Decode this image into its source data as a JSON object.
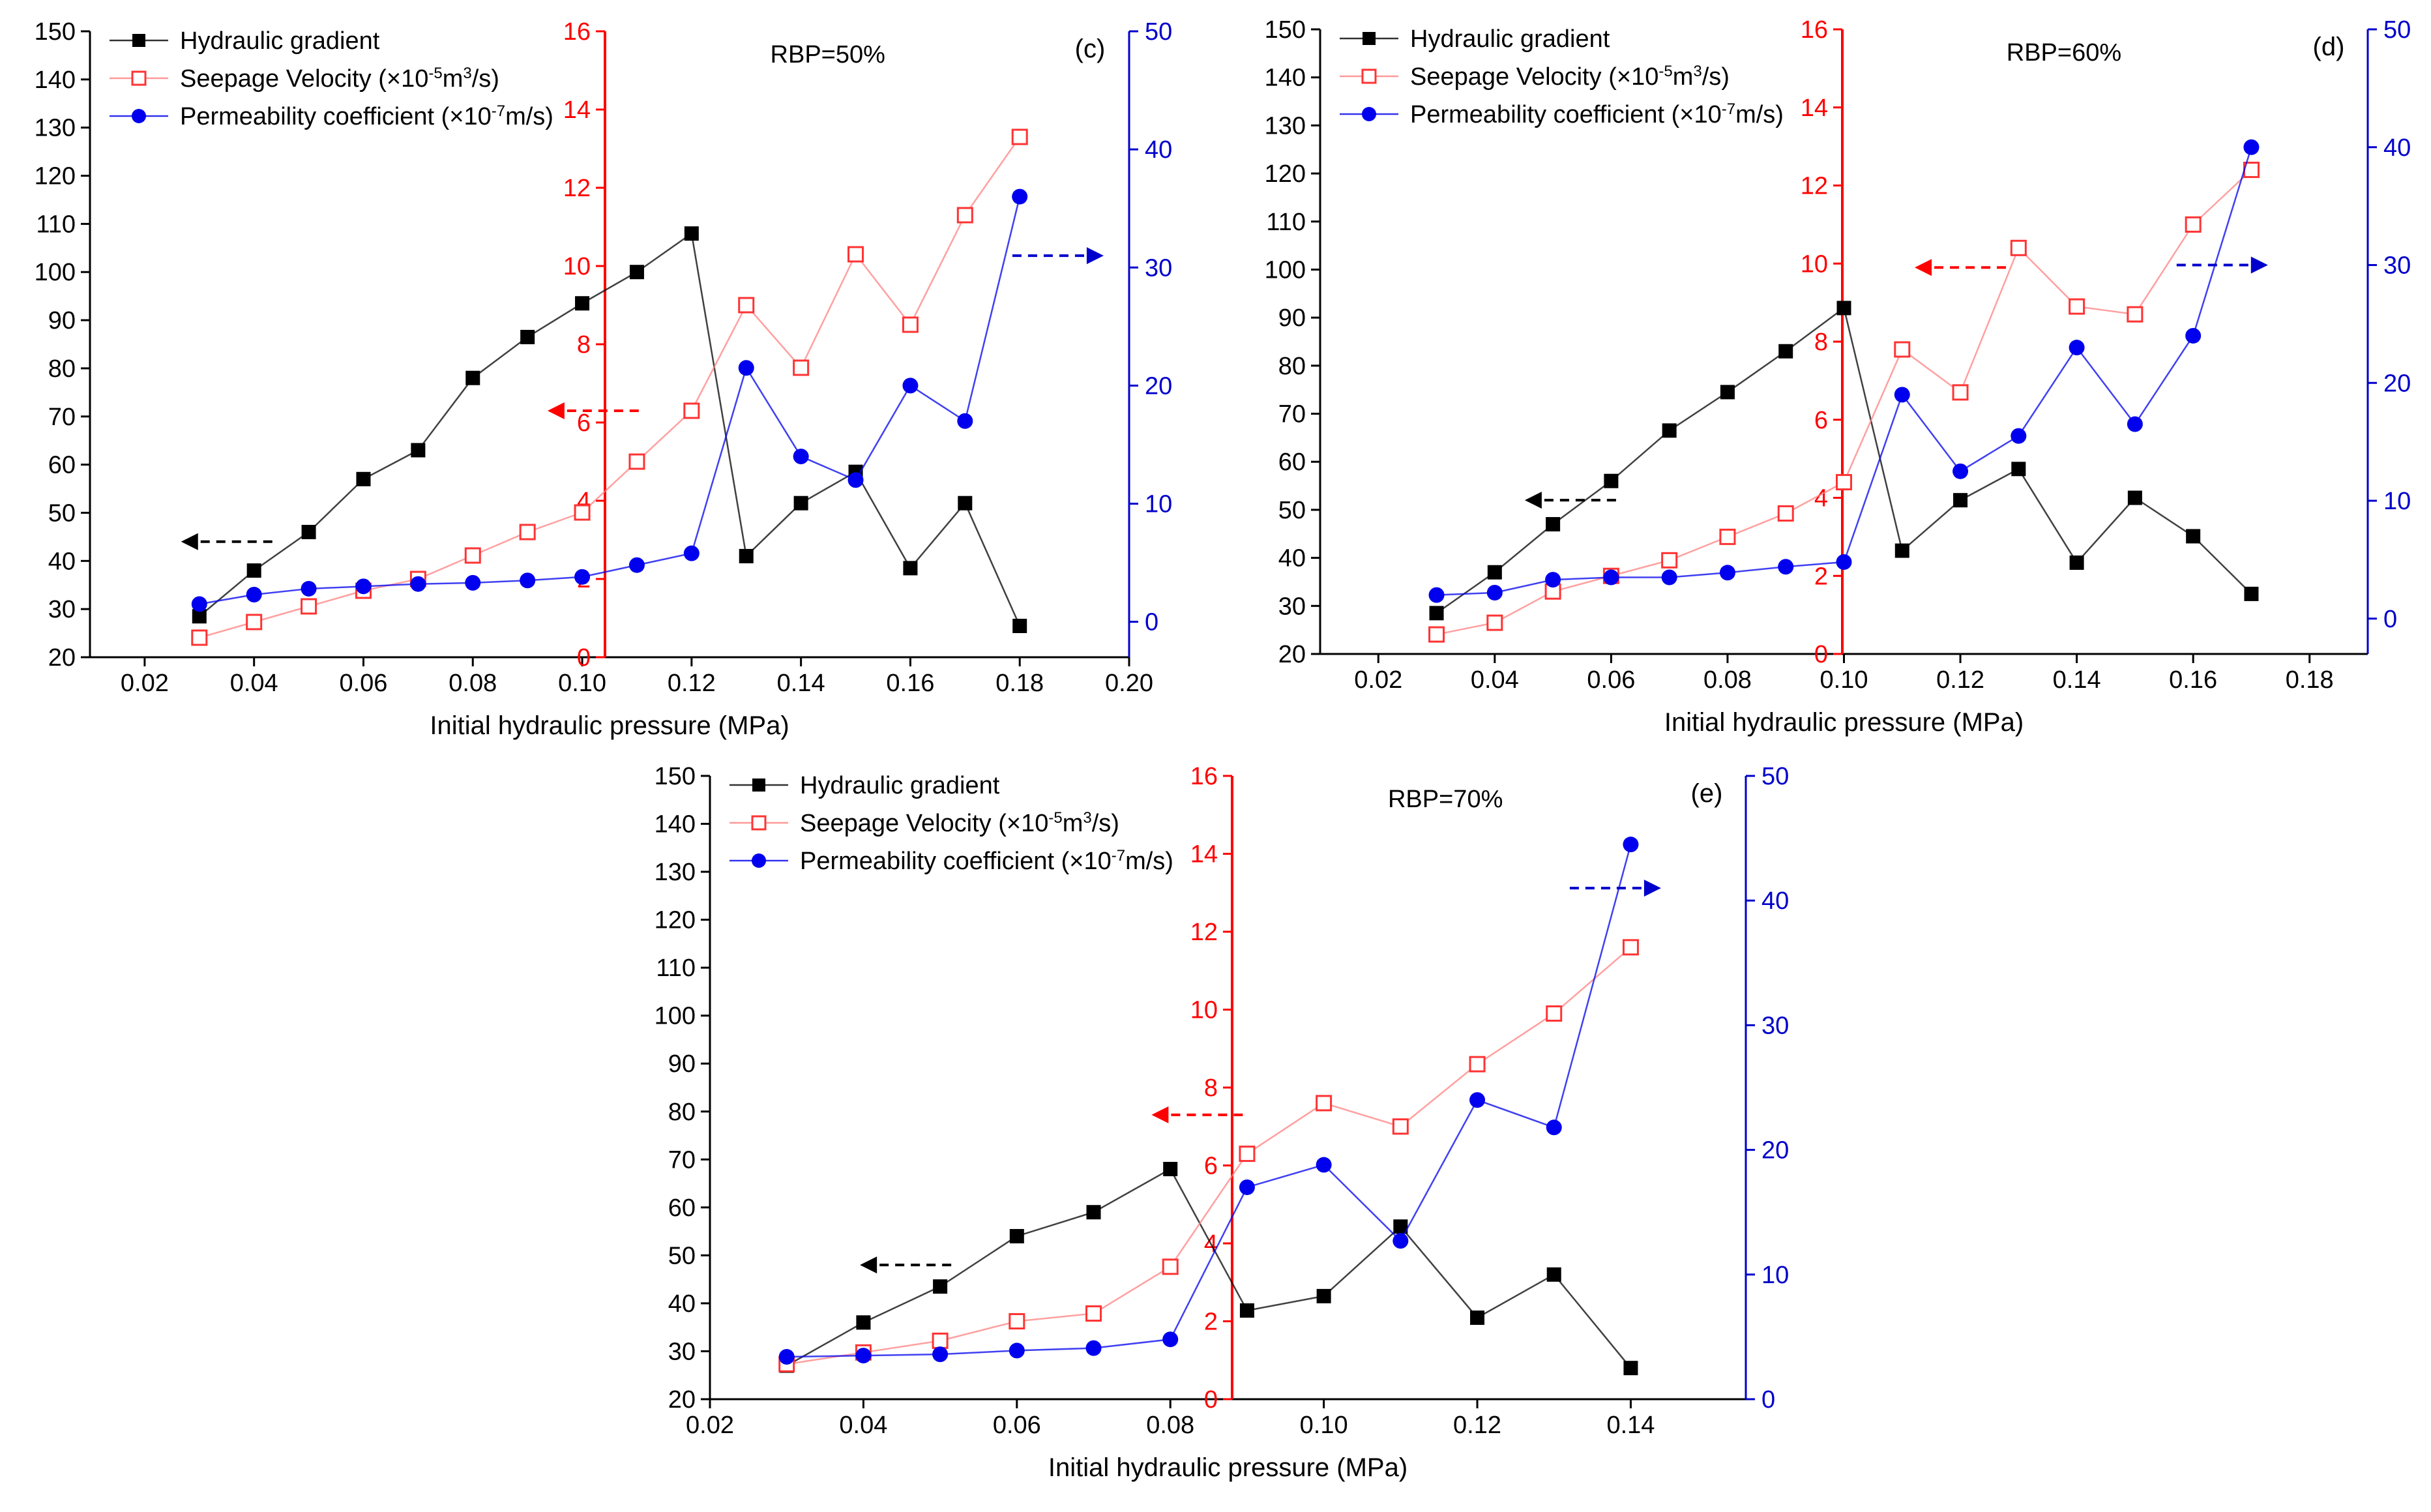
{
  "chart_data": [
    {
      "type": "line",
      "panel_label": "(c)",
      "annotation": "RBP=50%",
      "xlabel": "Initial hydraulic pressure (MPa)",
      "xlim": [
        0.01,
        0.2
      ],
      "x_ticks": [
        "0.02",
        "0.04",
        "0.06",
        "0.08",
        "0.10",
        "0.12",
        "0.14",
        "0.16",
        "0.18",
        "0.20"
      ],
      "y_left": {
        "lim": [
          20,
          150
        ],
        "ticks": [
          "20",
          "30",
          "40",
          "50",
          "60",
          "70",
          "80",
          "90",
          "100",
          "110",
          "120",
          "130",
          "140",
          "150"
        ],
        "color": "#000000"
      },
      "y_mid": {
        "lim": [
          0,
          16
        ],
        "ticks": [
          "0",
          "2",
          "4",
          "6",
          "8",
          "10",
          "12",
          "14",
          "16"
        ],
        "color": "#ff0000"
      },
      "y_right": {
        "lim": [
          -3,
          50
        ],
        "ticks": [
          "0",
          "10",
          "20",
          "30",
          "40",
          "50"
        ],
        "color": "#0000cc"
      },
      "series": [
        {
          "name": "Hydraulic gradient",
          "axis": "left",
          "color": "#000000",
          "marker": "square-filled",
          "x": [
            0.03,
            0.04,
            0.05,
            0.06,
            0.07,
            0.08,
            0.09,
            0.1,
            0.11,
            0.12,
            0.13,
            0.14,
            0.15,
            0.16,
            0.17,
            0.18
          ],
          "values": [
            28.5,
            38,
            46,
            57,
            63,
            78,
            86.5,
            93.5,
            100,
            108,
            41,
            52,
            58.5,
            38.5,
            52,
            26.5
          ]
        },
        {
          "name": "Seepage Velocity",
          "unit_base": "(×10",
          "unit_exp1": "-5",
          "unit_mid": "m",
          "unit_exp2": "3",
          "unit_end": "/s)",
          "axis": "mid",
          "color": "#ff8080",
          "marker": "square-open",
          "x": [
            0.03,
            0.04,
            0.05,
            0.06,
            0.07,
            0.08,
            0.09,
            0.1,
            0.11,
            0.12,
            0.13,
            0.14,
            0.15,
            0.16,
            0.17,
            0.18
          ],
          "values": [
            0.5,
            0.9,
            1.3,
            1.7,
            2.0,
            2.6,
            3.2,
            3.7,
            5.0,
            6.3,
            9.0,
            7.4,
            10.3,
            8.5,
            11.3,
            13.3
          ]
        },
        {
          "name": "Permeability coefficient",
          "unit_base": "(×10",
          "unit_exp1": "-7",
          "unit_mid": "m/s)",
          "unit_exp2": "",
          "unit_end": "",
          "axis": "right",
          "color": "#0000ee",
          "marker": "circle-filled",
          "x": [
            0.03,
            0.04,
            0.05,
            0.06,
            0.07,
            0.08,
            0.09,
            0.1,
            0.11,
            0.12,
            0.13,
            0.14,
            0.15,
            0.16,
            0.17,
            0.18
          ],
          "values": [
            1.5,
            2.3,
            2.8,
            3.0,
            3.2,
            3.3,
            3.5,
            3.8,
            4.8,
            5.8,
            21.5,
            14.0,
            12.0,
            20.0,
            17.0,
            36.0
          ]
        }
      ],
      "arrows": [
        {
          "axis": "left",
          "color": "#000000",
          "x": 0.035,
          "y": 44
        },
        {
          "axis": "mid",
          "color": "#ff0000",
          "x": 0.102,
          "y": 6.3
        },
        {
          "axis": "right",
          "color": "#0000cc",
          "x": 0.187,
          "y": 31
        }
      ]
    },
    {
      "type": "line",
      "panel_label": "(d)",
      "annotation": "RBP=60%",
      "xlabel": "Initial hydraulic pressure (MPa)",
      "xlim": [
        0.01,
        0.19
      ],
      "x_ticks": [
        "0.02",
        "0.04",
        "0.06",
        "0.08",
        "0.10",
        "0.12",
        "0.14",
        "0.16",
        "0.18"
      ],
      "y_left": {
        "lim": [
          20,
          150
        ],
        "ticks": [
          "20",
          "30",
          "40",
          "50",
          "60",
          "70",
          "80",
          "90",
          "100",
          "110",
          "120",
          "130",
          "140",
          "150"
        ],
        "color": "#000000"
      },
      "y_mid": {
        "lim": [
          0,
          16
        ],
        "ticks": [
          "0",
          "2",
          "4",
          "6",
          "8",
          "10",
          "12",
          "14",
          "16"
        ],
        "color": "#ff0000"
      },
      "y_right": {
        "lim": [
          -3,
          50
        ],
        "ticks": [
          "0",
          "10",
          "20",
          "30",
          "40",
          "50"
        ],
        "color": "#0000cc"
      },
      "series": [
        {
          "name": "Hydraulic gradient",
          "axis": "left",
          "color": "#000000",
          "marker": "square-filled",
          "x": [
            0.03,
            0.04,
            0.05,
            0.06,
            0.07,
            0.08,
            0.09,
            0.1,
            0.11,
            0.12,
            0.13,
            0.14,
            0.15,
            0.16,
            0.17
          ],
          "values": [
            28.5,
            37,
            47,
            56,
            66.5,
            74.5,
            83,
            92,
            41.5,
            52,
            58.5,
            39,
            52.5,
            44.5,
            32.5
          ]
        },
        {
          "name": "Seepage Velocity",
          "unit_base": "(×10",
          "unit_exp1": "-5",
          "unit_mid": "m",
          "unit_exp2": "3",
          "unit_end": "/s)",
          "axis": "mid",
          "color": "#ff8080",
          "marker": "square-open",
          "x": [
            0.03,
            0.04,
            0.05,
            0.06,
            0.07,
            0.08,
            0.09,
            0.1,
            0.11,
            0.12,
            0.13,
            0.14,
            0.15,
            0.16,
            0.17
          ],
          "values": [
            0.5,
            0.8,
            1.6,
            2.0,
            2.4,
            3.0,
            3.6,
            4.4,
            7.8,
            6.7,
            10.4,
            8.9,
            8.7,
            11.0,
            12.4
          ]
        },
        {
          "name": "Permeability coefficient",
          "unit_base": "(×10",
          "unit_exp1": "-7",
          "unit_mid": "m/s)",
          "unit_exp2": "",
          "unit_end": "",
          "axis": "right",
          "color": "#0000ee",
          "marker": "circle-filled",
          "x": [
            0.03,
            0.04,
            0.05,
            0.06,
            0.07,
            0.08,
            0.09,
            0.1,
            0.11,
            0.12,
            0.13,
            0.14,
            0.15,
            0.16,
            0.17
          ],
          "values": [
            2.0,
            2.2,
            3.3,
            3.5,
            3.5,
            3.9,
            4.4,
            4.8,
            19.0,
            12.5,
            15.5,
            23.0,
            16.5,
            24.0,
            40.0
          ]
        }
      ],
      "arrows": [
        {
          "axis": "left",
          "color": "#000000",
          "x": 0.053,
          "y": 52
        },
        {
          "axis": "mid",
          "color": "#ff0000",
          "x": 0.12,
          "y": 9.9
        },
        {
          "axis": "right",
          "color": "#0000cc",
          "x": 0.165,
          "y": 30
        }
      ]
    },
    {
      "type": "line",
      "panel_label": "(e)",
      "annotation": "RBP=70%",
      "xlabel": "Initial hydraulic pressure (MPa)",
      "xlim": [
        0.02,
        0.155
      ],
      "x_ticks": [
        "0.02",
        "0.04",
        "0.06",
        "0.08",
        "0.10",
        "0.12",
        "0.14"
      ],
      "y_left": {
        "lim": [
          20,
          150
        ],
        "ticks": [
          "20",
          "30",
          "40",
          "50",
          "60",
          "70",
          "80",
          "90",
          "100",
          "110",
          "120",
          "130",
          "140",
          "150"
        ],
        "color": "#000000"
      },
      "y_mid": {
        "lim": [
          0,
          16
        ],
        "ticks": [
          "0",
          "2",
          "4",
          "6",
          "8",
          "10",
          "12",
          "14",
          "16"
        ],
        "color": "#ff0000"
      },
      "y_right": {
        "lim": [
          0,
          50
        ],
        "ticks": [
          "0",
          "10",
          "20",
          "30",
          "40",
          "50"
        ],
        "color": "#0000cc"
      },
      "series": [
        {
          "name": "Hydraulic gradient",
          "axis": "left",
          "color": "#000000",
          "marker": "square-filled",
          "x": [
            0.03,
            0.04,
            0.05,
            0.06,
            0.07,
            0.08,
            0.09,
            0.1,
            0.11,
            0.12,
            0.13,
            0.14
          ],
          "values": [
            27,
            36,
            43.5,
            54,
            59,
            68,
            38.5,
            41.5,
            56,
            37,
            46,
            26.5
          ]
        },
        {
          "name": "Seepage Velocity",
          "unit_base": "(×10",
          "unit_exp1": "-5",
          "unit_mid": "m",
          "unit_exp2": "3",
          "unit_end": "/s)",
          "axis": "mid",
          "color": "#ff8080",
          "marker": "square-open",
          "x": [
            0.03,
            0.04,
            0.05,
            0.06,
            0.07,
            0.08,
            0.09,
            0.1,
            0.11,
            0.12,
            0.13,
            0.14
          ],
          "values": [
            0.9,
            1.2,
            1.5,
            2.0,
            2.2,
            3.4,
            6.3,
            7.6,
            7.0,
            8.6,
            9.9,
            11.6
          ]
        },
        {
          "name": "Permeability coefficient",
          "unit_base": "(×10",
          "unit_exp1": "-7",
          "unit_mid": "m/s)",
          "unit_exp2": "",
          "unit_end": "",
          "axis": "right",
          "color": "#0000ee",
          "marker": "circle-filled",
          "x": [
            0.03,
            0.04,
            0.05,
            0.06,
            0.07,
            0.08,
            0.09,
            0.1,
            0.11,
            0.12,
            0.13,
            0.14
          ],
          "values": [
            3.4,
            3.5,
            3.6,
            3.9,
            4.1,
            4.8,
            17.0,
            18.8,
            12.7,
            24.0,
            21.8,
            44.5
          ]
        }
      ],
      "arrows": [
        {
          "axis": "left",
          "color": "#000000",
          "x": 0.0455,
          "y": 48
        },
        {
          "axis": "mid",
          "color": "#ff0000",
          "x": 0.0835,
          "y": 7.3
        },
        {
          "axis": "right",
          "color": "#0000cc",
          "x": 0.138,
          "y": 41
        }
      ]
    }
  ]
}
